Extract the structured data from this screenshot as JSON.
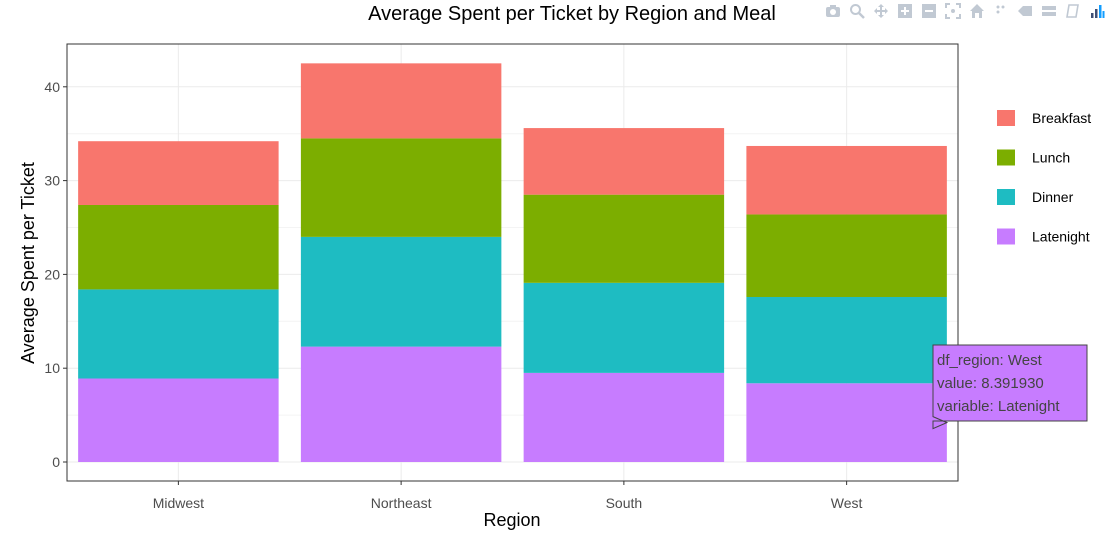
{
  "chart_data": {
    "type": "bar",
    "stacked": true,
    "title": "Average Spent per Ticket by Region and Meal",
    "xlabel": "Region",
    "ylabel": "Average Spent per Ticket",
    "categories": [
      "Midwest",
      "Northeast",
      "South",
      "West"
    ],
    "ylim": [
      0,
      44
    ],
    "yticks": [
      0,
      10,
      20,
      30,
      40
    ],
    "grid": true,
    "legend_position": "right",
    "series": [
      {
        "name": "Latenight",
        "color": "#C77CFF",
        "values": [
          8.9,
          12.3,
          9.5,
          8.39193
        ]
      },
      {
        "name": "Dinner",
        "color": "#1EBCC2",
        "values": [
          9.5,
          11.7,
          9.6,
          9.2
        ]
      },
      {
        "name": "Lunch",
        "color": "#7CAE00",
        "values": [
          9.0,
          10.5,
          9.4,
          8.8
        ]
      },
      {
        "name": "Breakfast",
        "color": "#F8766D",
        "values": [
          6.8,
          8.0,
          7.1,
          7.3
        ]
      }
    ],
    "legend_order": [
      "Breakfast",
      "Lunch",
      "Dinner",
      "Latenight"
    ],
    "tooltip": {
      "category": "West",
      "series": "Latenight",
      "lines": [
        "df_region: West",
        "value:  8.391930",
        "variable: Latenight"
      ]
    }
  },
  "modebar": {
    "icons": [
      "camera-icon",
      "zoom-icon",
      "pan-icon",
      "zoom-in-icon",
      "zoom-out-icon",
      "autoscale-icon",
      "home-icon",
      "spike-icon",
      "hover-closest-icon",
      "hover-compare-icon",
      "toggle-icon",
      "plotly-logo-icon"
    ]
  }
}
